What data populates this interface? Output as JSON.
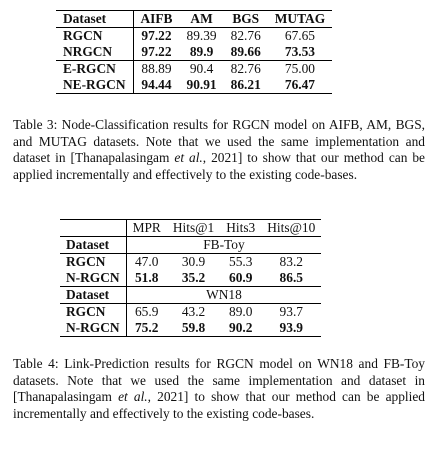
{
  "table3": {
    "header": [
      "Dataset",
      "AIFB",
      "AM",
      "BGS",
      "MUTAG"
    ],
    "rows": [
      {
        "name": "RGCN",
        "values": [
          "97.22",
          "89.39",
          "82.76",
          "67.65"
        ],
        "bold": [
          true,
          false,
          false,
          false
        ]
      },
      {
        "name": "NRGCN",
        "values": [
          "97.22",
          "89.9",
          "89.66",
          "73.53"
        ],
        "bold": [
          true,
          true,
          true,
          true
        ]
      },
      {
        "name": "E-RGCN",
        "values": [
          "88.89",
          "90.4",
          "82.76",
          "75.00"
        ],
        "bold": [
          false,
          false,
          false,
          false
        ]
      },
      {
        "name": "NE-RGCN",
        "values": [
          "94.44",
          "90.91",
          "86.21",
          "76.47"
        ],
        "bold": [
          true,
          true,
          true,
          true
        ]
      }
    ],
    "caption": {
      "text1": "Table 3: Node-Classification results for RGCN model on AIFB, AM, BGS, and MUTAG datasets. Note that we used the same implementation and dataset in [Thanapalasingam ",
      "et_al": "et al.",
      "text2": ", 2021] to show that our method can be applied incrementally and effectively to the existing code-bases."
    }
  },
  "table4": {
    "metrics": [
      "MPR",
      "Hits@1",
      "Hits3",
      "Hits@10"
    ],
    "dataset_label": "Dataset",
    "groups": [
      {
        "name": "FB-Toy",
        "rows": [
          {
            "name": "RGCN",
            "values": [
              "47.0",
              "30.9",
              "55.3",
              "83.2"
            ],
            "bold": false
          },
          {
            "name": "N-RGCN",
            "values": [
              "51.8",
              "35.2",
              "60.9",
              "86.5"
            ],
            "bold": true
          }
        ]
      },
      {
        "name": "WN18",
        "rows": [
          {
            "name": "RGCN",
            "values": [
              "65.9",
              "43.2",
              "89.0",
              "93.7"
            ],
            "bold": false
          },
          {
            "name": "N-RGCN",
            "values": [
              "75.2",
              "59.8",
              "90.2",
              "93.9"
            ],
            "bold": true
          }
        ]
      }
    ],
    "caption": {
      "text1": "Table 4: Link-Prediction results for RGCN model on WN18 and FB-Toy datasets. Note that we used the same implementation and dataset in [Thanapalasingam ",
      "et_al": "et al.",
      "text2": ", 2021] to show that our method can be applied incrementally and effectively to the existing code-bases."
    }
  }
}
